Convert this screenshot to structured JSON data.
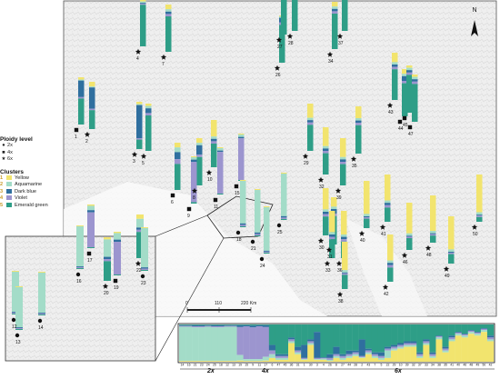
{
  "legend": {
    "ploidy_title": "Ploidy level",
    "ploidy": [
      {
        "symbol": "circle",
        "label": "2x"
      },
      {
        "symbol": "square",
        "label": "4x"
      },
      {
        "symbol": "star",
        "label": "6x"
      }
    ],
    "clusters_title": "Clusters",
    "clusters": [
      {
        "num": "1",
        "label": "Yellow",
        "color": "#f2e46e"
      },
      {
        "num": "2",
        "label": "Aquamarine",
        "color": "#a3dcc8"
      },
      {
        "num": "3",
        "label": "Dark blue",
        "color": "#2f6f9f"
      },
      {
        "num": "4",
        "label": "Violet",
        "color": "#9c95cf"
      },
      {
        "num": "5",
        "label": "Emerald green",
        "color": "#2e9e87"
      }
    ]
  },
  "north_label": "N",
  "scale": {
    "ticks": [
      "0",
      "110",
      "220 Km"
    ]
  },
  "populations_main": [
    {
      "id": "1",
      "ploidy": "4x",
      "mix": [
        0.05,
        0.02,
        0.35,
        0.03,
        0.55
      ]
    },
    {
      "id": "2",
      "ploidy": "6x",
      "mix": [
        0.1,
        0.02,
        0.45,
        0.03,
        0.4
      ]
    },
    {
      "id": "3",
      "ploidy": "6x",
      "mix": [
        0.05,
        0.02,
        0.7,
        0.03,
        0.2
      ]
    },
    {
      "id": "4",
      "ploidy": "6x",
      "mix": [
        0.05,
        0.03,
        0.02,
        0.02,
        0.88
      ]
    },
    {
      "id": "5",
      "ploidy": "6x",
      "mix": [
        0.05,
        0.05,
        0.1,
        0.05,
        0.75
      ]
    },
    {
      "id": "6",
      "ploidy": "4x",
      "mix": [
        0.1,
        0.1,
        0.15,
        0.1,
        0.55
      ]
    },
    {
      "id": "7",
      "ploidy": "6x",
      "mix": [
        0.1,
        0.05,
        0.05,
        0.05,
        0.75
      ]
    },
    {
      "id": "8",
      "ploidy": "6x",
      "mix": [
        0.1,
        0.05,
        0.2,
        0.05,
        0.6
      ]
    },
    {
      "id": "9",
      "ploidy": "4x",
      "mix": [
        0.02,
        0.05,
        0.05,
        0.85,
        0.03
      ]
    },
    {
      "id": "10",
      "ploidy": "6x",
      "mix": [
        0.35,
        0.05,
        0.05,
        0.05,
        0.5
      ]
    },
    {
      "id": "11",
      "ploidy": "4x",
      "mix": [
        0.02,
        0.05,
        0.03,
        0.88,
        0.02
      ]
    },
    {
      "id": "15",
      "ploidy": "4x",
      "mix": [
        0.02,
        0.05,
        0.03,
        0.88,
        0.02
      ]
    },
    {
      "id": "18",
      "ploidy": "2x",
      "mix": [
        0.02,
        0.9,
        0.03,
        0.03,
        0.02
      ]
    },
    {
      "id": "21",
      "ploidy": "2x",
      "mix": [
        0.02,
        0.9,
        0.03,
        0.03,
        0.02
      ]
    },
    {
      "id": "24",
      "ploidy": "2x",
      "mix": [
        0.02,
        0.92,
        0.02,
        0.02,
        0.02
      ]
    },
    {
      "id": "25",
      "ploidy": "2x",
      "mix": [
        0.02,
        0.9,
        0.03,
        0.03,
        0.02
      ]
    },
    {
      "id": "26",
      "ploidy": "6x",
      "mix": [
        0.02,
        0.03,
        0.1,
        0.05,
        0.8
      ]
    },
    {
      "id": "27",
      "ploidy": "6x",
      "mix": [
        0.05,
        0.05,
        0.05,
        0.05,
        0.8
      ]
    },
    {
      "id": "28",
      "ploidy": "6x",
      "mix": [
        0.15,
        0.05,
        0.05,
        0.05,
        0.7
      ]
    },
    {
      "id": "29",
      "ploidy": "6x",
      "mix": [
        0.3,
        0.05,
        0.05,
        0.05,
        0.55
      ]
    },
    {
      "id": "30",
      "ploidy": "6x",
      "mix": [
        0.45,
        0.05,
        0.05,
        0.05,
        0.4
      ]
    },
    {
      "id": "31",
      "ploidy": "6x",
      "mix": [
        0.2,
        0.05,
        0.1,
        0.05,
        0.6
      ]
    },
    {
      "id": "32",
      "ploidy": "6x",
      "mix": [
        0.4,
        0.05,
        0.05,
        0.05,
        0.45
      ]
    },
    {
      "id": "33",
      "ploidy": "6x",
      "mix": [
        0.45,
        0.05,
        0.05,
        0.05,
        0.4
      ]
    },
    {
      "id": "34",
      "ploidy": "6x",
      "mix": [
        0.1,
        0.05,
        0.05,
        0.05,
        0.75
      ]
    },
    {
      "id": "35",
      "ploidy": "6x",
      "mix": [
        0.25,
        0.05,
        0.05,
        0.05,
        0.6
      ]
    },
    {
      "id": "36",
      "ploidy": "6x",
      "mix": [
        0.5,
        0.05,
        0.05,
        0.05,
        0.35
      ]
    },
    {
      "id": "37",
      "ploidy": "6x",
      "mix": [
        0.1,
        0.05,
        0.05,
        0.05,
        0.75
      ]
    },
    {
      "id": "38",
      "ploidy": "6x",
      "mix": [
        0.6,
        0.05,
        0.02,
        0.03,
        0.3
      ]
    },
    {
      "id": "39",
      "ploidy": "6x",
      "mix": [
        0.4,
        0.05,
        0.05,
        0.05,
        0.45
      ]
    },
    {
      "id": "40",
      "ploidy": "6x",
      "mix": [
        0.7,
        0.05,
        0.02,
        0.03,
        0.2
      ]
    },
    {
      "id": "41",
      "ploidy": "6x",
      "mix": [
        0.55,
        0.05,
        0.05,
        0.05,
        0.3
      ]
    },
    {
      "id": "42",
      "ploidy": "6x",
      "mix": [
        0.55,
        0.05,
        0.05,
        0.05,
        0.3
      ]
    },
    {
      "id": "43",
      "ploidy": "6x",
      "mix": [
        0.2,
        0.05,
        0.05,
        0.05,
        0.65
      ]
    },
    {
      "id": "44",
      "ploidy": "4x",
      "mix": [
        0.1,
        0.05,
        0.1,
        0.05,
        0.7
      ]
    },
    {
      "id": "45",
      "ploidy": "4x",
      "mix": [
        0.05,
        0.05,
        0.05,
        0.05,
        0.8
      ]
    },
    {
      "id": "46",
      "ploidy": "6x",
      "mix": [
        0.65,
        0.05,
        0.02,
        0.03,
        0.25
      ]
    },
    {
      "id": "47",
      "ploidy": "4x",
      "mix": [
        0.05,
        0.05,
        0.05,
        0.05,
        0.8
      ]
    },
    {
      "id": "48",
      "ploidy": "6x",
      "mix": [
        0.75,
        0.05,
        0.02,
        0.03,
        0.15
      ]
    },
    {
      "id": "49",
      "ploidy": "6x",
      "mix": [
        0.7,
        0.05,
        0.02,
        0.03,
        0.2
      ]
    },
    {
      "id": "50",
      "ploidy": "6x",
      "mix": [
        0.8,
        0.05,
        0.02,
        0.03,
        0.1
      ]
    }
  ],
  "populations_inset": [
    {
      "id": "12",
      "ploidy": "2x",
      "mix": [
        0.02,
        0.92,
        0.02,
        0.02,
        0.02
      ]
    },
    {
      "id": "13",
      "ploidy": "2x",
      "mix": [
        0.02,
        0.92,
        0.02,
        0.02,
        0.02
      ]
    },
    {
      "id": "14",
      "ploidy": "2x",
      "mix": [
        0.02,
        0.92,
        0.02,
        0.02,
        0.02
      ]
    },
    {
      "id": "16",
      "ploidy": "2x",
      "mix": [
        0.02,
        0.92,
        0.02,
        0.02,
        0.02
      ]
    },
    {
      "id": "17",
      "ploidy": "4x",
      "mix": [
        0.03,
        0.1,
        0.05,
        0.8,
        0.02
      ]
    },
    {
      "id": "19",
      "ploidy": "4x",
      "mix": [
        0.03,
        0.15,
        0.05,
        0.75,
        0.02
      ]
    },
    {
      "id": "20",
      "ploidy": "6x",
      "mix": [
        0.05,
        0.4,
        0.05,
        0.05,
        0.45
      ]
    },
    {
      "id": "22",
      "ploidy": "6x",
      "mix": [
        0.1,
        0.2,
        0.05,
        0.05,
        0.6
      ]
    },
    {
      "id": "23",
      "ploidy": "2x",
      "mix": [
        0.02,
        0.9,
        0.03,
        0.03,
        0.02
      ]
    }
  ],
  "structure_plot": {
    "population_order": [
      "14",
      "16",
      "21",
      "23",
      "24",
      "25",
      "18",
      "12",
      "13",
      "19",
      "15",
      "9",
      "11",
      "17",
      "6",
      "47",
      "45",
      "36",
      "31",
      "1",
      "30",
      "3",
      "4",
      "26",
      "8",
      "27",
      "44",
      "28",
      "2",
      "43",
      "7",
      "5",
      "22",
      "29",
      "10",
      "39",
      "32",
      "37",
      "33",
      "34",
      "38",
      "35",
      "41",
      "40",
      "46",
      "48",
      "49",
      "50",
      "42"
    ],
    "ploidy_labels": [
      "2x",
      "4x",
      "6x"
    ]
  }
}
